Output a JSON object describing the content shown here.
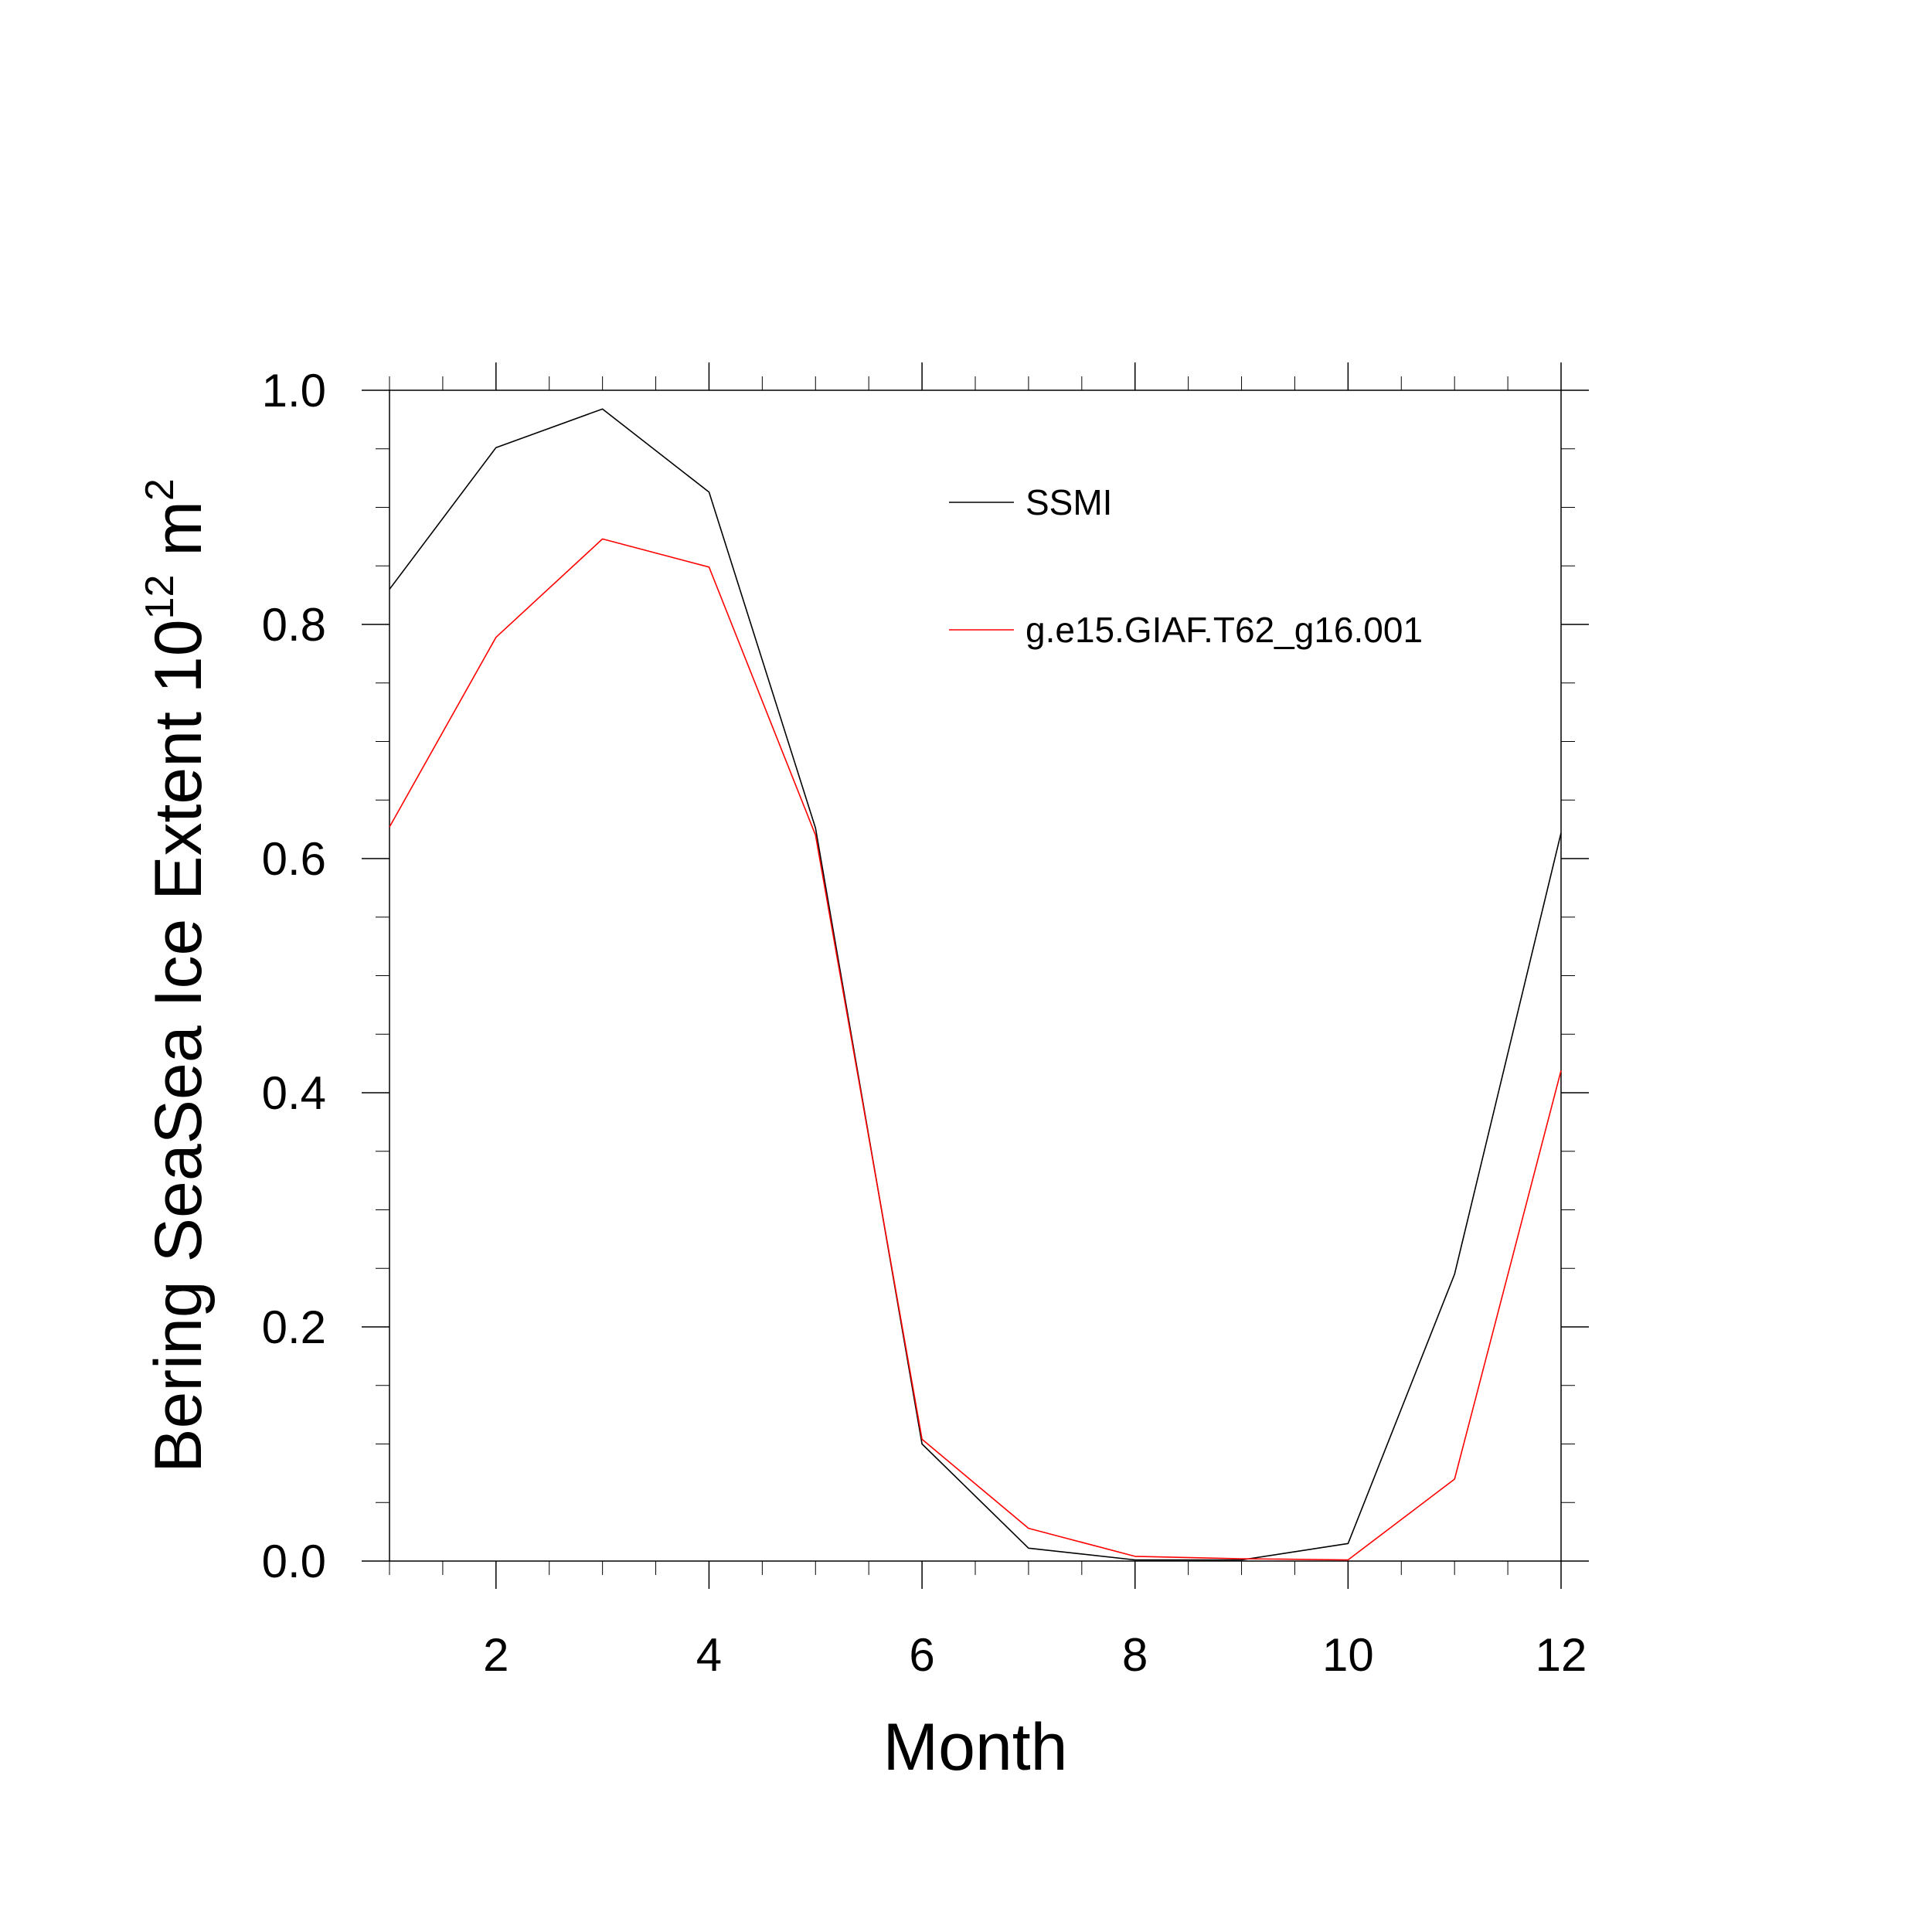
{
  "chart_data": {
    "type": "line",
    "xlabel": "Month",
    "ylabel": {
      "main": "Bering SeaSea Ice Extent 10",
      "sup1": "12",
      "unit": " m",
      "sup2": "2"
    },
    "xlim": [
      1,
      12
    ],
    "ylim": [
      0.0,
      1.0
    ],
    "x_major_ticks": [
      2,
      4,
      6,
      8,
      10,
      12
    ],
    "x_minor_step": 0.5,
    "y_major_ticks": [
      0.0,
      0.2,
      0.4,
      0.6,
      0.8,
      1.0
    ],
    "y_tick_labels": [
      "0.0",
      "0.2",
      "0.4",
      "0.6",
      "0.8",
      "1.0"
    ],
    "y_minor_step": 0.05,
    "grid": false,
    "legend_position": "top-right",
    "x": [
      1,
      2,
      3,
      4,
      5,
      6,
      7,
      8,
      9,
      10,
      11,
      12
    ],
    "series": [
      {
        "name": "SSMI",
        "color": "#000000",
        "values": [
          0.83,
          0.951,
          0.984,
          0.913,
          0.626,
          0.1,
          0.011,
          0.001,
          0.001,
          0.015,
          0.245,
          0.622
        ]
      },
      {
        "name": "g.e15.GIAF.T62_g16.001",
        "color": "#ff0000",
        "values": [
          0.627,
          0.789,
          0.873,
          0.849,
          0.62,
          0.104,
          0.028,
          0.004,
          0.002,
          0.001,
          0.07,
          0.419
        ]
      }
    ]
  }
}
